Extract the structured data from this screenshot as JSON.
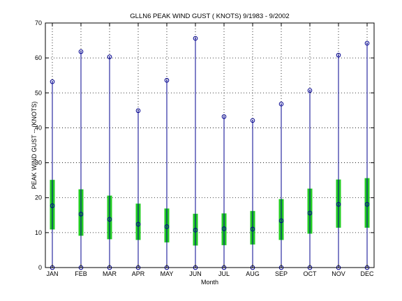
{
  "chart_data": {
    "type": "box",
    "title": "GLLN6  PEAK WIND GUST ( KNOTS) 9/1983 - 9/2002",
    "xlabel": "Month",
    "ylabel": "PEAK WIND GUST  --  (KNOTS)",
    "categories": [
      "JAN",
      "FEB",
      "MAR",
      "APR",
      "MAY",
      "JUN",
      "JUL",
      "AUG",
      "SEP",
      "OCT",
      "NOV",
      "DEC"
    ],
    "min": [
      0,
      0,
      0,
      0,
      0,
      0,
      0,
      0,
      0,
      0,
      0,
      0
    ],
    "max": [
      53.2,
      61.8,
      60.3,
      44.9,
      53.6,
      65.6,
      43.2,
      42.1,
      46.8,
      50.7,
      60.8,
      64.2
    ],
    "mean": [
      17.7,
      15.3,
      13.8,
      12.4,
      11.7,
      10.7,
      11.1,
      11.0,
      13.4,
      15.6,
      18.1,
      18.1
    ],
    "box_low": [
      10.9,
      9.1,
      8.1,
      7.9,
      7.2,
      6.3,
      6.4,
      6.6,
      7.9,
      9.7,
      11.4,
      11.4
    ],
    "box_high": [
      25.1,
      22.4,
      20.6,
      18.3,
      16.9,
      15.4,
      15.5,
      16.2,
      19.6,
      22.6,
      25.2,
      25.6
    ],
    "ylim": [
      0,
      70
    ],
    "yticks": [
      0,
      10,
      20,
      30,
      40,
      50,
      60,
      70
    ],
    "grid": true,
    "colors": {
      "whisker": "#00008f",
      "box": "#22cc22",
      "marker": "#00008f",
      "axis": "#000000",
      "grid": "#000000"
    }
  }
}
